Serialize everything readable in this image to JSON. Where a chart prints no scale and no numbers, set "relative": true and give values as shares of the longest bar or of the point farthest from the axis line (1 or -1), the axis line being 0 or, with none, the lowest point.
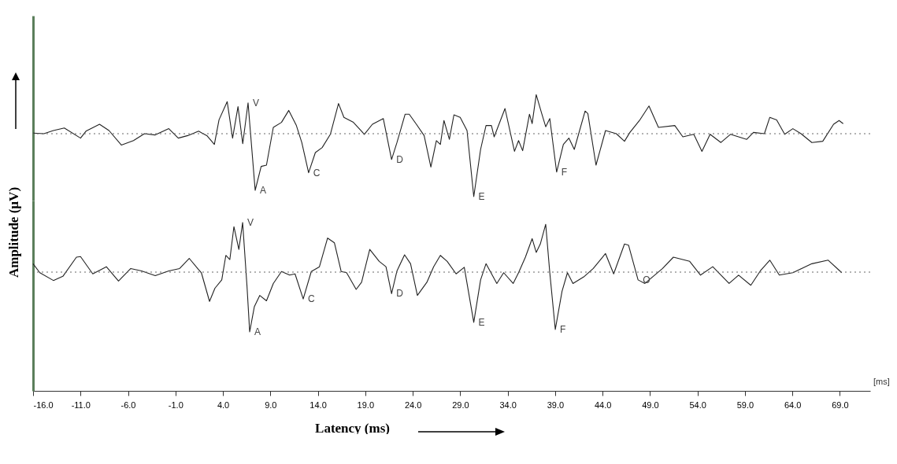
{
  "chart_data": [
    {
      "type": "line",
      "relative": true,
      "ylabel": "Amplitude (µV)",
      "xlim": [
        -16,
        72.2
      ],
      "tick_labels": false,
      "series": [
        {
          "color": "#222222",
          "x": [
            -16.0,
            -14.86,
            -13.86,
            -12.71,
            -11.0,
            -10.43,
            -9.0,
            -8.0,
            -6.7,
            -5.42,
            -4.27,
            -3.13,
            -1.7,
            -0.7,
            0.3,
            1.44,
            2.31,
            3.1,
            3.59,
            4.45,
            5.02,
            5.59,
            6.09,
            6.65,
            7.4,
            8.03,
            8.59,
            9.31,
            10.17,
            10.94,
            11.74,
            12.31,
            13.03,
            13.74,
            14.46,
            15.32,
            16.18,
            16.75,
            17.75,
            18.61,
            18.9,
            19.75,
            20.9,
            21.77,
            22.34,
            23.2,
            23.63,
            24.34,
            25.2,
            25.91,
            26.49,
            26.91,
            27.29,
            27.86,
            28.34,
            29.0,
            29.72,
            30.43,
            31.15,
            31.72,
            32.29,
            32.58,
            33.72,
            34.72,
            35.15,
            35.58,
            36.3,
            36.58,
            37.01,
            37.59,
            38.01,
            38.44,
            39.16,
            39.87,
            40.45,
            41.02,
            42.16,
            42.45,
            43.31,
            44.31,
            45.45,
            46.31,
            46.88,
            47.89,
            48.89,
            49.89,
            51.61,
            52.46,
            53.61,
            54.47,
            55.33,
            56.47,
            57.47,
            59.19,
            59.9,
            61.05,
            61.62,
            62.34,
            63.19,
            64.05,
            64.91,
            66.05,
            67.2,
            68.34,
            68.92,
            69.35
          ],
          "values": [
            0.01,
            0,
            0.05,
            0.09,
            -0.07,
            0.04,
            0.15,
            0.05,
            -0.18,
            -0.11,
            0,
            -0.02,
            0.08,
            -0.07,
            -0.03,
            0.04,
            -0.03,
            -0.17,
            0.22,
            0.51,
            -0.07,
            0.43,
            -0.16,
            0.49,
            -0.9,
            -0.52,
            -0.5,
            0.1,
            0.18,
            0.37,
            0.13,
            -0.14,
            -0.62,
            -0.3,
            -0.22,
            -0.01,
            0.48,
            0.26,
            0.18,
            0.04,
            -0.01,
            0.15,
            0.24,
            -0.41,
            -0.14,
            0.31,
            0.31,
            0.16,
            -0.03,
            -0.53,
            -0.11,
            -0.17,
            0.21,
            -0.09,
            0.3,
            0.26,
            0.05,
            -1,
            -0.25,
            0.13,
            0.13,
            -0.05,
            0.4,
            -0.28,
            -0.11,
            -0.27,
            0.31,
            0.16,
            0.62,
            0.32,
            0.11,
            0.24,
            -0.61,
            -0.17,
            -0.07,
            -0.25,
            0.36,
            0.32,
            -0.5,
            0.05,
            0,
            -0.12,
            0.02,
            0.21,
            0.44,
            0.1,
            0.13,
            -0.05,
            -0.01,
            -0.28,
            -0.01,
            -0.14,
            -0.01,
            -0.09,
            0.02,
            0,
            0.26,
            0.22,
            -0.01,
            0.08,
            0,
            -0.14,
            -0.12,
            0.15,
            0.21,
            0.16
          ]
        }
      ],
      "ref_lines": [
        {
          "axis": "y",
          "value": 0,
          "line_style": "dotted",
          "color": "#666666"
        }
      ],
      "annotations": [
        {
          "text": "V",
          "x": 6.65,
          "y": 0.49
        },
        {
          "text": "A",
          "x": 7.4,
          "y": -0.9
        },
        {
          "text": "C",
          "x": 13.03,
          "y": -0.62
        },
        {
          "text": "D",
          "x": 21.77,
          "y": -0.41
        },
        {
          "text": "E",
          "x": 30.43,
          "y": -1
        },
        {
          "text": "F",
          "x": 39.16,
          "y": -0.61
        }
      ]
    },
    {
      "type": "line",
      "relative": true,
      "xlabel": "Latency (ms)",
      "xlim": [
        -16,
        72.2
      ],
      "tick_labels": "x",
      "xticks": [
        {
          "value": -16,
          "label": "-16.0"
        },
        {
          "value": -11,
          "label": "-11.0"
        },
        {
          "value": -6,
          "label": "-6.0"
        },
        {
          "value": -1,
          "label": "-1.0"
        },
        {
          "value": 4,
          "label": "4.0"
        },
        {
          "value": 9,
          "label": "9.0"
        },
        {
          "value": 14,
          "label": "14.0"
        },
        {
          "value": 19,
          "label": "19.0"
        },
        {
          "value": 24,
          "label": "24.0"
        },
        {
          "value": 29,
          "label": "29.0"
        },
        {
          "value": 34,
          "label": "34.0"
        },
        {
          "value": 39,
          "label": "39.0"
        },
        {
          "value": 44,
          "label": "44.0"
        },
        {
          "value": 49,
          "label": "49.0"
        },
        {
          "value": 54,
          "label": "54.0"
        },
        {
          "value": 59,
          "label": "59.0"
        },
        {
          "value": 64,
          "label": "64.0"
        },
        {
          "value": 69,
          "label": "69.0"
        }
      ],
      "series": [
        {
          "color": "#222222",
          "x": [
            -16.0,
            -15.29,
            -13.86,
            -12.86,
            -11.43,
            -11.0,
            -9.71,
            -8.28,
            -7.0,
            -5.71,
            -4.57,
            -3.13,
            -1.7,
            -0.56,
            0.45,
            1.44,
            1.73,
            2.59,
            3.16,
            3.88,
            4.31,
            4.73,
            5.16,
            5.68,
            6.08,
            6.54,
            6.82,
            7.31,
            7.88,
            8.59,
            9.31,
            10.17,
            11.03,
            11.6,
            12.46,
            13.31,
            14.17,
            15.03,
            15.75,
            16.46,
            17.03,
            18.04,
            18.61,
            19.47,
            20.47,
            21.18,
            21.77,
            22.34,
            23.14,
            23.77,
            24.49,
            25.49,
            26.2,
            26.91,
            27.63,
            28.57,
            29.43,
            30.43,
            31.15,
            31.72,
            32.86,
            33.58,
            34.58,
            35.15,
            35.87,
            36.58,
            37.01,
            37.44,
            38.01,
            38.44,
            39.02,
            39.73,
            40.3,
            40.88,
            42.02,
            43.02,
            44.31,
            45.17,
            46.31,
            46.74,
            47.74,
            48.46,
            50.32,
            51.46,
            53.18,
            54.32,
            55.61,
            57.33,
            58.33,
            59.62,
            60.62,
            61.62,
            62.62,
            64.05,
            66.05,
            67.77,
            69.2
          ],
          "values": [
            0.14,
            -0.01,
            -0.14,
            -0.07,
            0.25,
            0.26,
            -0.03,
            0.09,
            -0.15,
            0.06,
            0.02,
            -0.06,
            0.02,
            0.06,
            0.23,
            0.04,
            -0.01,
            -0.49,
            -0.27,
            -0.13,
            0.28,
            0.21,
            0.76,
            0.38,
            0.83,
            -0.24,
            -1,
            -0.58,
            -0.39,
            -0.48,
            -0.19,
            0.01,
            -0.05,
            -0.03,
            -0.45,
            0.01,
            0.09,
            0.57,
            0.49,
            0.01,
            -0.01,
            -0.29,
            -0.17,
            0.38,
            0.18,
            0.09,
            -0.36,
            0.02,
            0.29,
            0.14,
            -0.39,
            -0.17,
            0.09,
            0.28,
            0.18,
            -0.03,
            0.08,
            -0.84,
            -0.13,
            0.14,
            -0.19,
            -0.01,
            -0.19,
            -0.01,
            0.25,
            0.56,
            0.33,
            0.47,
            0.8,
            -0.01,
            -0.96,
            -0.32,
            -0.01,
            -0.19,
            -0.08,
            0.06,
            0.31,
            -0.03,
            0.47,
            0.45,
            -0.13,
            -0.19,
            0.06,
            0.25,
            0.18,
            -0.05,
            0.09,
            -0.19,
            -0.05,
            -0.22,
            0.02,
            0.2,
            -0.05,
            -0.01,
            0.14,
            0.2,
            -0.01
          ]
        }
      ],
      "ref_lines": [
        {
          "axis": "y",
          "value": 0,
          "line_style": "dotted",
          "color": "#666666"
        }
      ],
      "annotations": [
        {
          "text": "V",
          "x": 6.08,
          "y": 0.83
        },
        {
          "text": "A",
          "x": 6.82,
          "y": -1
        },
        {
          "text": "C",
          "x": 12.46,
          "y": -0.45
        },
        {
          "text": "D",
          "x": 21.77,
          "y": -0.36
        },
        {
          "text": "E",
          "x": 30.43,
          "y": -0.84
        },
        {
          "text": "F",
          "x": 39.02,
          "y": -0.96
        },
        {
          "text": "O",
          "x": 47.74,
          "y": -0.13
        },
        "[ms]"
      ]
    }
  ]
}
